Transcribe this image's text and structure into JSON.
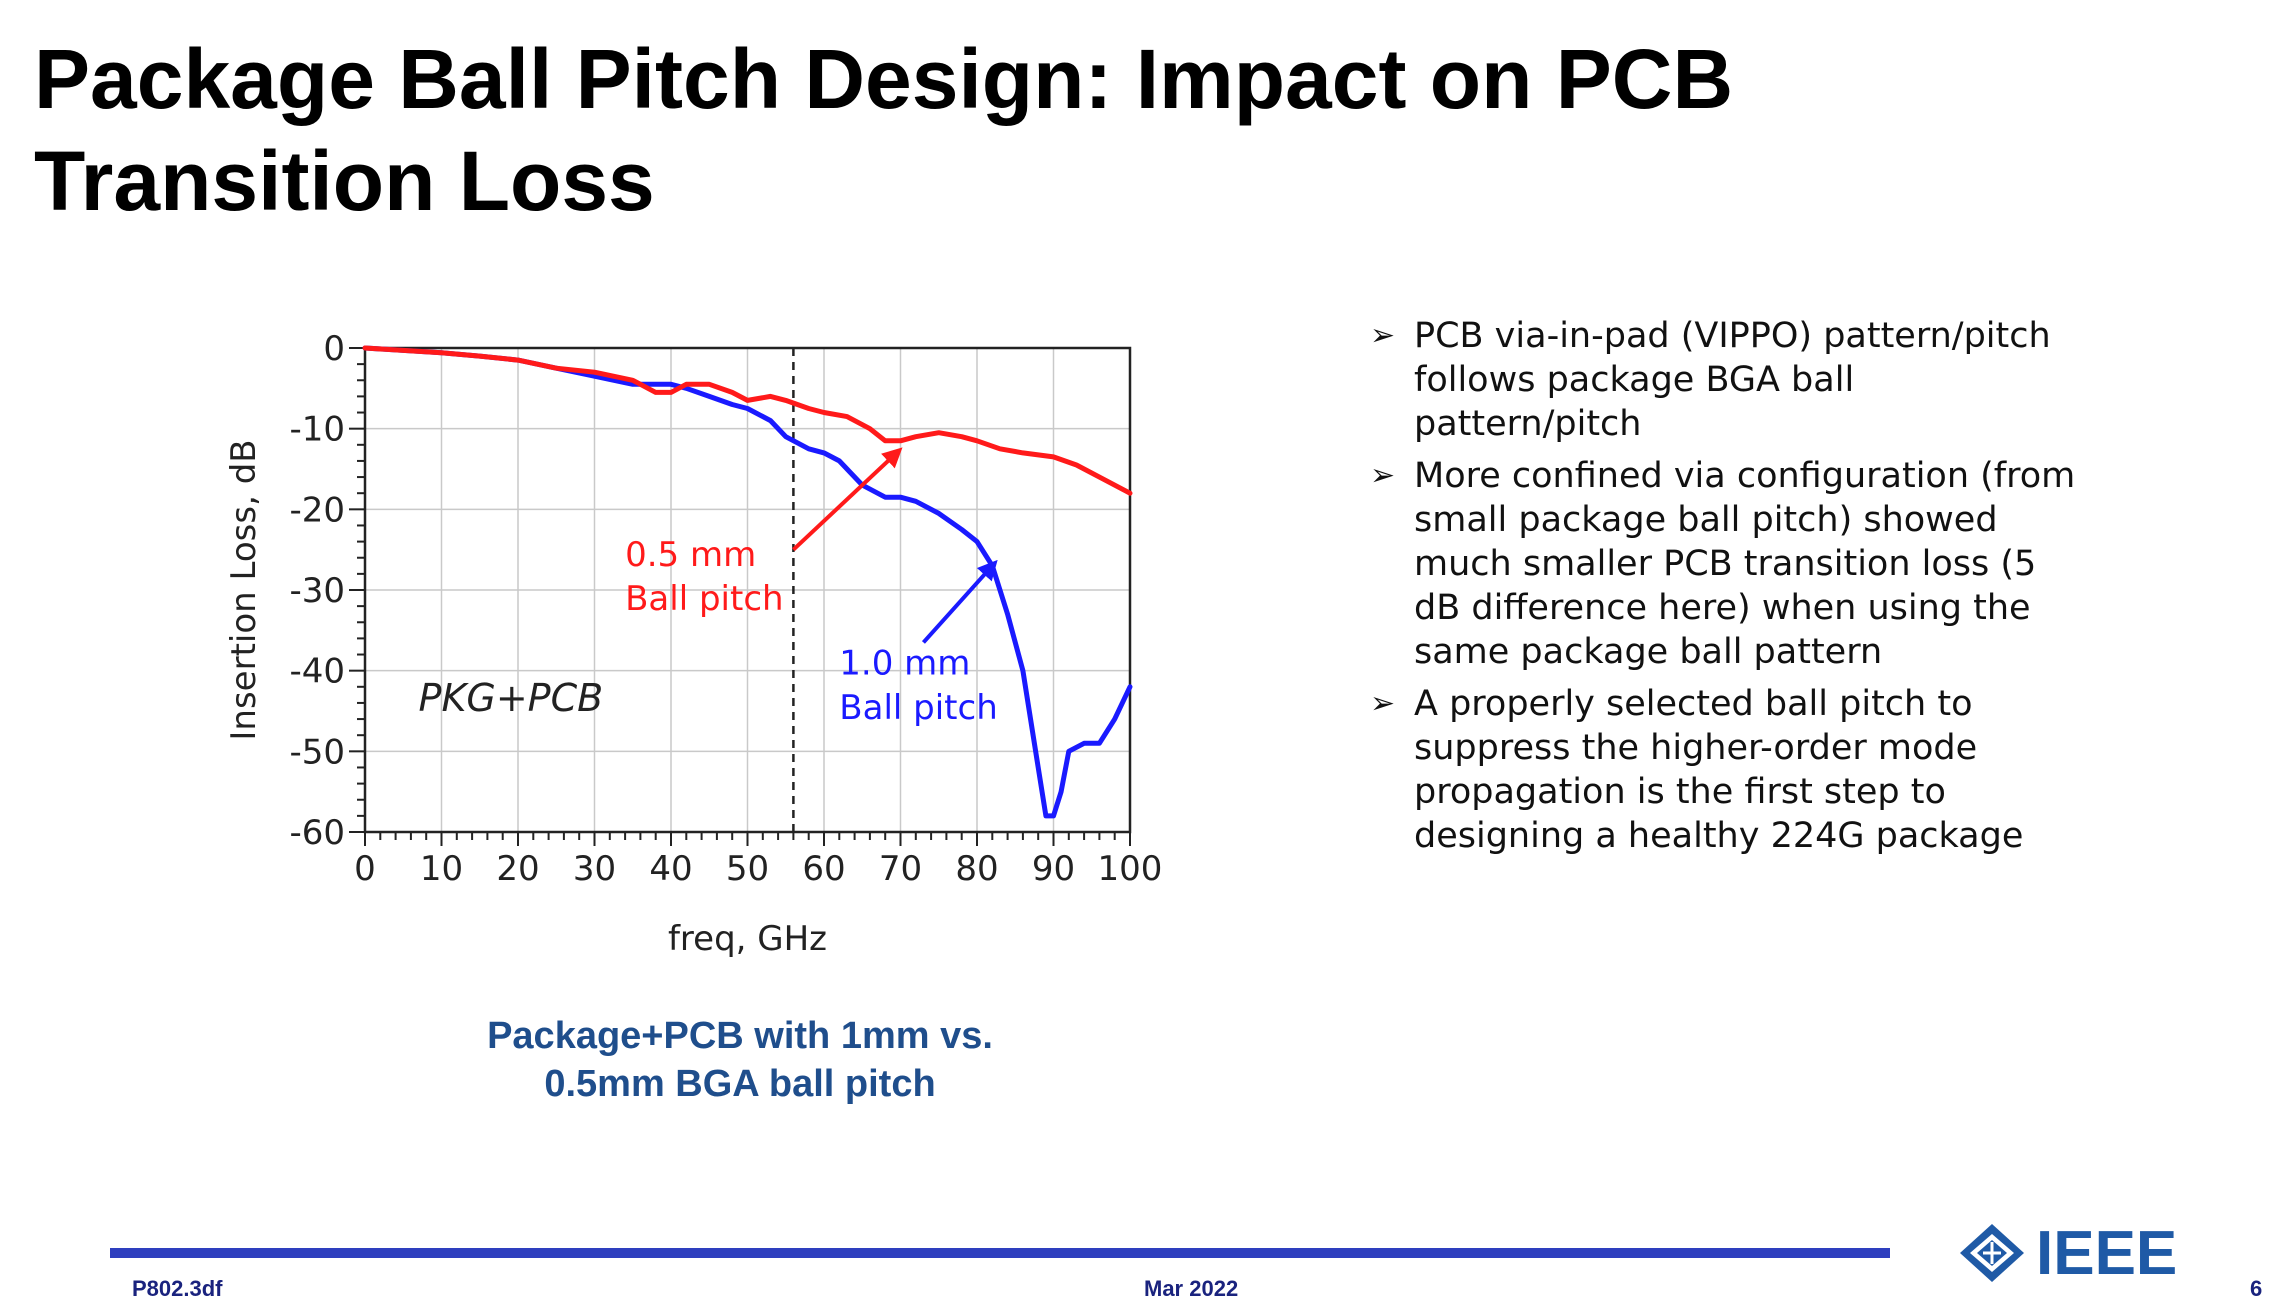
{
  "title": {
    "line1": "Package Ball Pitch Design: Impact on PCB",
    "line2": "Transition Loss"
  },
  "chart_data": {
    "type": "line",
    "xlabel": "freq, GHz",
    "ylabel": "Insertion Loss, dB",
    "xlim": [
      0,
      100
    ],
    "ylim": [
      -60,
      0
    ],
    "xticks": [
      0,
      10,
      20,
      30,
      40,
      50,
      60,
      70,
      80,
      90,
      100
    ],
    "yticks": [
      0,
      -10,
      -20,
      -30,
      -40,
      -50,
      -60
    ],
    "grid": true,
    "inset_label": "PKG+PCB",
    "vline_x": 56,
    "series": [
      {
        "name_line1": "0.5 mm",
        "name_line2": "Ball pitch",
        "color": "#ff1a1a",
        "x": [
          0,
          5,
          10,
          15,
          20,
          25,
          30,
          35,
          38,
          40,
          42,
          45,
          48,
          50,
          53,
          55,
          58,
          60,
          63,
          66,
          68,
          70,
          72,
          75,
          78,
          80,
          83,
          86,
          90,
          93,
          96,
          100
        ],
        "y": [
          0,
          -0.3,
          -0.6,
          -1,
          -1.5,
          -2.5,
          -3,
          -4,
          -5.5,
          -5.5,
          -4.5,
          -4.5,
          -5.5,
          -6.5,
          -6,
          -6.5,
          -7.5,
          -8,
          -8.5,
          -10,
          -11.5,
          -11.5,
          -11,
          -10.5,
          -11,
          -11.5,
          -12.5,
          -13,
          -13.5,
          -14.5,
          -16,
          -18
        ]
      },
      {
        "name_line1": "1.0 mm",
        "name_line2": "Ball pitch",
        "color": "#1a1aff",
        "x": [
          0,
          5,
          10,
          15,
          20,
          25,
          30,
          35,
          40,
          42,
          45,
          48,
          50,
          53,
          55,
          58,
          60,
          62,
          65,
          68,
          70,
          72,
          75,
          78,
          80,
          82,
          84,
          86,
          88,
          89,
          90,
          91,
          92,
          94,
          96,
          98,
          100
        ],
        "y": [
          0,
          -0.3,
          -0.6,
          -1,
          -1.5,
          -2.5,
          -3.5,
          -4.5,
          -4.5,
          -5,
          -6,
          -7,
          -7.5,
          -9,
          -11,
          -12.5,
          -13,
          -14,
          -17,
          -18.5,
          -18.5,
          -19,
          -20.5,
          -22.5,
          -24,
          -27,
          -33,
          -40,
          -52,
          -58,
          -58,
          -55,
          -50,
          -49,
          -49,
          -46,
          -42
        ]
      }
    ]
  },
  "caption": {
    "line1": "Package+PCB with 1mm vs.",
    "line2": "0.5mm BGA ball pitch"
  },
  "bullets": [
    {
      "arrow": "➢",
      "text": "PCB via-in-pad (VIPPO) pattern/pitch follows package BGA ball pattern/pitch"
    },
    {
      "arrow": "➢",
      "text": "More confined via configuration (from small package ball pitch) showed much smaller PCB transition loss (5 dB difference here)  when using the same package ball pattern"
    },
    {
      "arrow": "➢",
      "text": "A properly selected ball pitch to suppress the higher-order mode propagation is the first step to designing a healthy 224G package"
    }
  ],
  "footer": {
    "left": "P802.3df",
    "center": "Mar 2022",
    "page": "6",
    "logo_text": "IEEE",
    "accent_color": "#2e3fbf"
  }
}
